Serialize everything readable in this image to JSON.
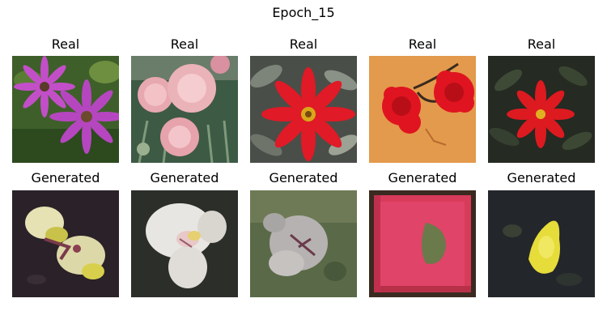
{
  "figure": {
    "title": "Epoch_15",
    "row_labels": {
      "real": "Real",
      "generated": "Generated"
    },
    "columns": [
      {
        "real_subject": "magenta-daisy-flowers",
        "generated_subject": "yellow-white-blobs"
      },
      {
        "real_subject": "pink-carnation-flowers",
        "generated_subject": "white-flower-blob"
      },
      {
        "real_subject": "red-dahlia-flower",
        "generated_subject": "gray-white-blob-on-green"
      },
      {
        "real_subject": "red-carnations-on-orange",
        "generated_subject": "red-pink-texture"
      },
      {
        "real_subject": "red-dahlia-dark-foliage",
        "generated_subject": "yellow-blob-on-dark"
      }
    ]
  }
}
